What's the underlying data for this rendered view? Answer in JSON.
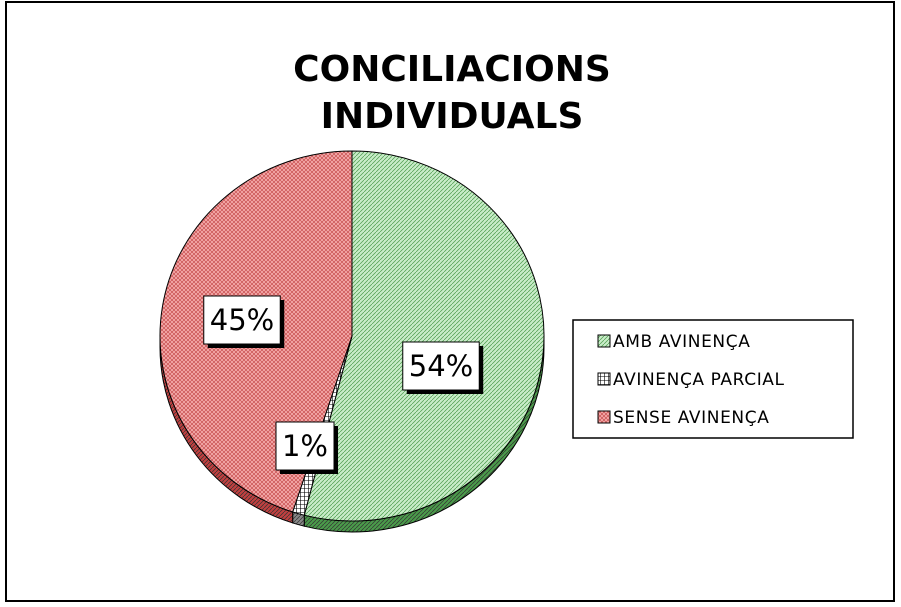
{
  "chart_data": {
    "type": "pie",
    "title": "CONCILIACIONS INDIVIDUALS",
    "categories": [
      "AMB AVINENÇA",
      "AVINENÇA PARCIAL",
      "SENSE AVINENÇA"
    ],
    "values": [
      54,
      1,
      45
    ],
    "value_labels": [
      "54%",
      "1%",
      "45%"
    ],
    "colors": [
      "#c8ecc8",
      "#ffffff",
      "#f4aaaa"
    ],
    "legend": "right"
  }
}
